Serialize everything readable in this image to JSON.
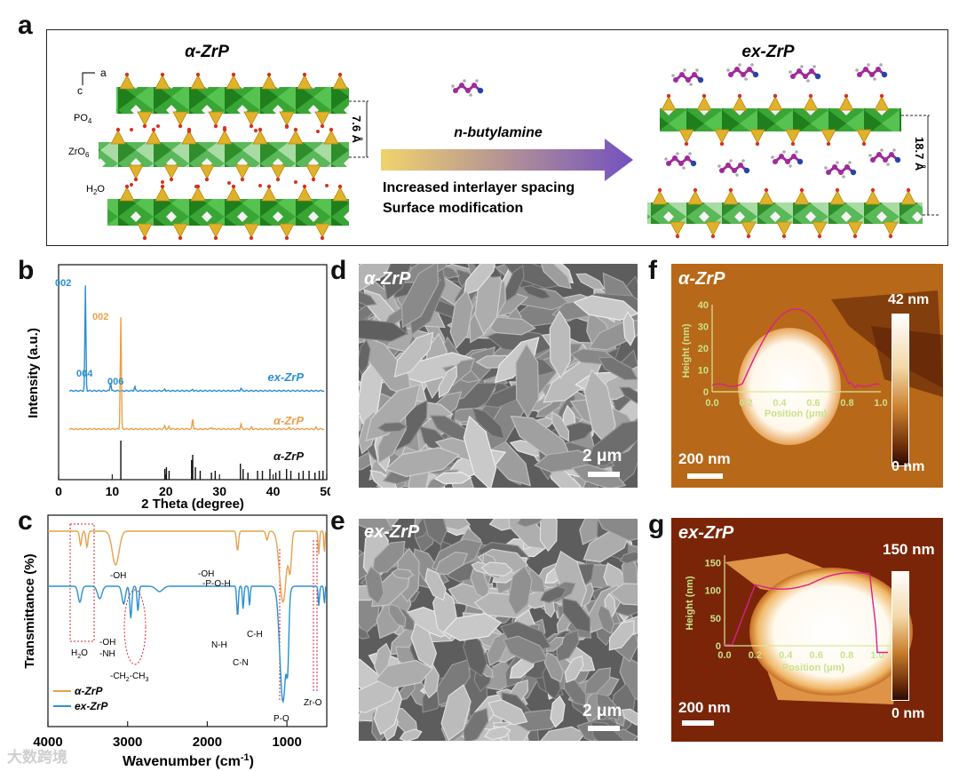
{
  "panel_labels": {
    "a": "a",
    "b": "b",
    "c": "c",
    "d": "d",
    "e": "e",
    "f": "f",
    "g": "g"
  },
  "panel_a": {
    "left_title": "α-ZrP",
    "right_title": "ex-ZrP",
    "axis_c": "c",
    "axis_a": "a",
    "label_po4": "PO",
    "label_po4_sub": "4",
    "label_zro6": "ZrO",
    "label_zro6_sub": "6",
    "label_h2o": "H",
    "label_h2o_sub": "2",
    "label_h2o_end": "O",
    "spacing_left": "7.6 Å",
    "spacing_right": "18.7 Å",
    "molecule": "n-butylamine",
    "caption_line1": "Increased interlayer spacing",
    "caption_line2": "Surface modification",
    "colors": {
      "zr_octahedra": "#2e9c2b",
      "po4_tetrahedra": "#e0b12a",
      "butylamine": "#a02a9a",
      "arrow_start": "#f1d36c",
      "arrow_end": "#7350c0"
    }
  },
  "chart_data": [
    {
      "type": "line",
      "panel": "b",
      "xlabel": "2 Theta (degree)",
      "ylabel": "Intensity (a.u.)",
      "xlim": [
        0,
        50
      ],
      "xticks": [
        "0",
        "10",
        "20",
        "30",
        "40",
        "50"
      ],
      "series": [
        {
          "name": "ex-ZrP",
          "color": "#2a8fd0",
          "peaks": [
            {
              "x": 5.0,
              "label": "002"
            },
            {
              "x": 9.7,
              "label": "004"
            },
            {
              "x": 14.2,
              "label": "006"
            }
          ]
        },
        {
          "name": "α-ZrP",
          "color": "#e8a14c",
          "peaks": [
            {
              "x": 11.6,
              "label": "002"
            },
            {
              "x": 25.0,
              "label": ""
            },
            {
              "x": 34.0,
              "label": ""
            }
          ]
        },
        {
          "name": "α-ZrP",
          "color": "#111111",
          "type": "reference sticks"
        }
      ],
      "reference_sticks": [
        11.6,
        19.8,
        20.1,
        20.6,
        24.8,
        25.0,
        25.5,
        26.4,
        28.5,
        29.2,
        33.9,
        34.4,
        35.3,
        37.1,
        38.0,
        39.4,
        40.5,
        41.2,
        42.5,
        43.3,
        44.8,
        45.6,
        46.7,
        47.8,
        48.6,
        49.3
      ]
    },
    {
      "type": "line",
      "panel": "c",
      "xlabel": "Wavenumber (cm",
      "xlabel_sup": "-1",
      "xlabel_end": ")",
      "ylabel": "Transmittance (%)",
      "xlim": [
        4000,
        500
      ],
      "xticks": [
        "4000",
        "3000",
        "2000",
        "1000"
      ],
      "series": [
        {
          "name": "α-ZrP",
          "color": "#e8a14c"
        },
        {
          "name": "ex-ZrP",
          "color": "#2a8fd0"
        }
      ],
      "annotations": [
        "-OH",
        "-OH",
        "-P-O-H",
        "-OH",
        "-NH",
        "-CH",
        "2",
        "-CH",
        "3",
        "N-H",
        "C-H",
        "C-N",
        "P-O",
        "Zr-O",
        "H",
        "2",
        "O"
      ]
    }
  ],
  "panel_d": {
    "title": "α-ZrP",
    "scale": "2 μm"
  },
  "panel_e": {
    "title": "ex-ZrP",
    "scale": "2 μm"
  },
  "panel_f": {
    "title": "α-ZrP",
    "scale": "200 nm",
    "bar_max": "42 nm",
    "bar_min": "0 nm",
    "inset_ylabel": "Height (nm)",
    "inset_xlabel": "Position (μm)",
    "inset_yticks": [
      "0",
      "10",
      "20",
      "30",
      "40"
    ],
    "inset_xticks": [
      "0.0",
      "0.2",
      "0.4",
      "0.6",
      "0.8",
      "1.0"
    ]
  },
  "panel_g": {
    "title": "ex-ZrP",
    "scale": "200 nm",
    "bar_max": "150 nm",
    "bar_min": "0 nm",
    "inset_ylabel": "Height (nm)",
    "inset_xlabel": "Position (μm)",
    "inset_yticks": [
      "0",
      "50",
      "100",
      "150"
    ],
    "inset_xticks": [
      "0.0",
      "0.2",
      "0.4",
      "0.6",
      "0.8",
      "1.0"
    ]
  },
  "watermark": "大数跨境"
}
